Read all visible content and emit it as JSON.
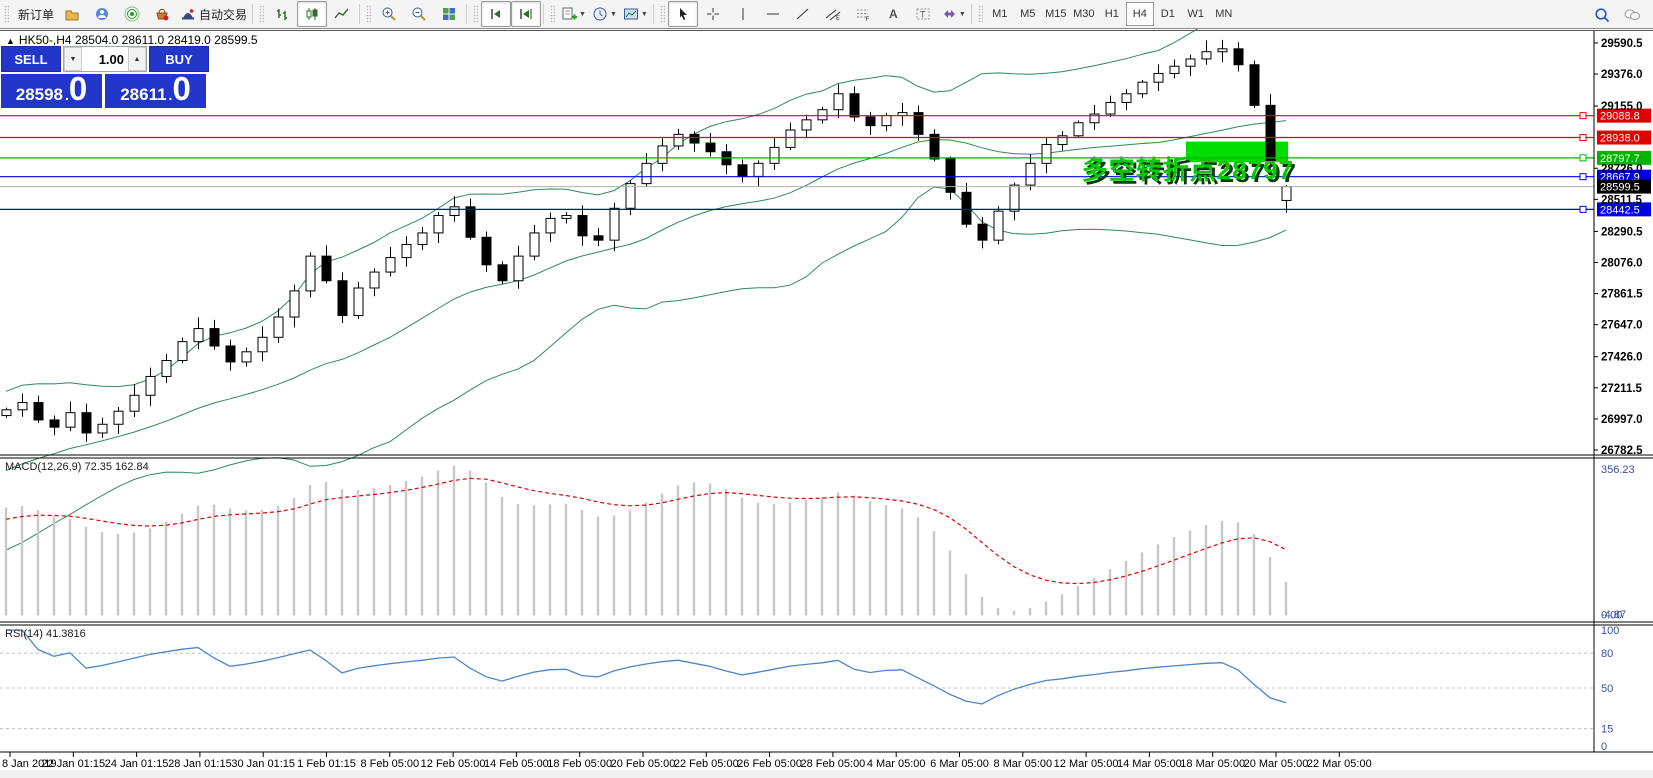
{
  "window": {
    "title_marker": "▲",
    "chart_title": "HK50-,H4  28504.0 28611.0 28419.0 28599.5"
  },
  "toolbar": {
    "groups": [
      {
        "items": [
          {
            "name": "new-order-button",
            "label": "新订单"
          },
          {
            "name": "charts-button",
            "icon": "charts-icon"
          },
          {
            "name": "community-button",
            "icon": "community-icon"
          },
          {
            "name": "signals-button",
            "icon": "signals-icon"
          },
          {
            "name": "market-button",
            "icon": "market-icon"
          },
          {
            "name": "autotrading-button",
            "icon": "autotrading-icon",
            "label": "自动交易"
          }
        ]
      },
      {
        "items": [
          {
            "name": "bar-chart-style-button",
            "icon": "bar-chart-icon"
          },
          {
            "name": "candlestick-style-button",
            "icon": "candlestick-icon",
            "pressed": true
          },
          {
            "name": "line-chart-style-button",
            "icon": "line-chart-icon"
          }
        ]
      },
      {
        "items": [
          {
            "name": "zoom-in-button",
            "icon": "zoom-in-icon"
          },
          {
            "name": "zoom-out-button",
            "icon": "zoom-out-icon"
          },
          {
            "name": "tile-windows-button",
            "icon": "tile-windows-icon"
          }
        ]
      },
      {
        "items": [
          {
            "name": "auto-scroll-button",
            "icon": "auto-scroll-icon",
            "pressed": true
          },
          {
            "name": "chart-shift-button",
            "icon": "chart-shift-icon",
            "pressed": true
          }
        ]
      },
      {
        "items": [
          {
            "name": "new-chart-button",
            "icon": "new-chart-icon",
            "dropdown": true
          },
          {
            "name": "periods-button",
            "icon": "periods-icon",
            "dropdown": true
          },
          {
            "name": "templates-button",
            "icon": "templates-icon",
            "dropdown": true
          }
        ]
      },
      {
        "items": [
          {
            "name": "cursor-button",
            "icon": "cursor-icon",
            "pressed": true
          },
          {
            "name": "crosshair-button",
            "icon": "crosshair-icon"
          },
          {
            "name": "vertical-line-button",
            "icon": "vertical-line-icon"
          },
          {
            "name": "horizontal-line-button",
            "icon": "horizontal-line-icon"
          },
          {
            "name": "trendline-button",
            "icon": "trendline-icon"
          },
          {
            "name": "equidistant-channel-button",
            "icon": "equidistant-channel-icon"
          },
          {
            "name": "fibonacci-button",
            "icon": "fibonacci-icon"
          },
          {
            "name": "text-button",
            "icon": "text-icon"
          },
          {
            "name": "text-label-button",
            "icon": "text-label-icon"
          },
          {
            "name": "arrows-button",
            "icon": "arrows-icon",
            "dropdown": true
          }
        ]
      }
    ],
    "timeframes": [
      {
        "label": "M1"
      },
      {
        "label": "M5"
      },
      {
        "label": "M15"
      },
      {
        "label": "M30"
      },
      {
        "label": "H1"
      },
      {
        "label": "H4",
        "pressed": true
      },
      {
        "label": "D1"
      },
      {
        "label": "W1"
      },
      {
        "label": "MN"
      }
    ],
    "right_items": [
      {
        "name": "search-button",
        "icon": "search-icon"
      },
      {
        "name": "chat-button",
        "icon": "chat-icon"
      }
    ]
  },
  "trade_panel": {
    "sell_label": "SELL",
    "buy_label": "BUY",
    "volume": "1.00",
    "sell_price": {
      "main": "28598",
      "dot": ".",
      "big": "0"
    },
    "buy_price": {
      "main": "28611",
      "dot": ".",
      "big": "0"
    }
  },
  "price_axis": {
    "ticks": [
      "29590.5",
      "29376.0",
      "29155.0",
      "28726.0",
      "28511.5",
      "28290.5",
      "28076.0",
      "27861.5",
      "27647.0",
      "27426.0",
      "27211.5",
      "26997.0",
      "26782.5"
    ]
  },
  "price_lines": [
    {
      "value": 29088.8,
      "label": "29088.8",
      "color": "#e00000",
      "text": "#ffffff"
    },
    {
      "value": 28938.0,
      "label": "28938.0",
      "color": "#e00000",
      "text": "#ffffff"
    },
    {
      "value": 28797.7,
      "label": "28797.7",
      "color": "#00b400",
      "text": "#ffffff"
    },
    {
      "value": 28667.9,
      "label": "28667.9",
      "color": "#0000e8",
      "text": "#ffffff"
    },
    {
      "value": 28442.5,
      "label": "28442.5",
      "color": "#0000e8",
      "text": "#ffffff"
    }
  ],
  "current_price": {
    "value": 28599.5,
    "label": "28599.5",
    "line_color": "#b0b0b0",
    "bg": "#000000",
    "text": "#ffffff"
  },
  "indicators": {
    "macd": {
      "label": "MACD(12,26,9) 72.35 162.84",
      "scale_top": "356.23",
      "scale_zero": "0.00",
      "scale_min": "-4.87"
    },
    "rsi": {
      "label": "RSI(14) 41.3816",
      "scale_labels": [
        "100",
        "80",
        "50",
        "15",
        "0"
      ],
      "levels": [
        80,
        50,
        15
      ]
    }
  },
  "time_axis": {
    "labels": [
      "8 Jan 2019",
      "22 Jan 01:15",
      "24 Jan 01:15",
      "28 Jan 01:15",
      "30 Jan 01:15",
      "1 Feb 01:15",
      "8 Feb 05:00",
      "12 Feb 05:00",
      "14 Feb 05:00",
      "18 Feb 05:00",
      "20 Feb 05:00",
      "22 Feb 05:00",
      "26 Feb 05:00",
      "28 Feb 05:00",
      "4 Mar 05:00",
      "6 Mar 05:00",
      "8 Mar 05:00",
      "12 Mar 05:00",
      "14 Mar 05:00",
      "18 Mar 05:00",
      "20 Mar 05:00",
      "22 Mar 05:00"
    ]
  },
  "annotation": {
    "text": "多空转折点28797",
    "color": "#00cc00"
  },
  "highlight_rect": {
    "price_top": 28910,
    "price_bottom": 28768,
    "bar_start": 74,
    "bar_end": 80,
    "color": "#00dc00"
  },
  "chart_data": {
    "type": "candlestick",
    "symbol": "HK50",
    "timeframe": "H4",
    "title": "HK50-,H4",
    "ohlc_current": [
      28504.0,
      28611.0,
      28419.0,
      28599.5
    ],
    "y_range": [
      26748,
      29666
    ],
    "closes": [
      27060,
      27110,
      26990,
      26940,
      27040,
      26900,
      26960,
      27050,
      27160,
      27290,
      27400,
      27530,
      27620,
      27500,
      27390,
      27460,
      27560,
      27700,
      27880,
      28120,
      27950,
      27710,
      27900,
      28010,
      28110,
      28200,
      28280,
      28400,
      28460,
      28250,
      28060,
      27950,
      28120,
      28280,
      28380,
      28400,
      28260,
      28230,
      28450,
      28620,
      28760,
      28880,
      28960,
      28900,
      28840,
      28750,
      28670,
      28760,
      28870,
      28990,
      29060,
      29130,
      29240,
      29080,
      29020,
      29090,
      29110,
      28960,
      28790,
      28560,
      28340,
      28230,
      28430,
      28610,
      28760,
      28890,
      28950,
      29040,
      29100,
      29180,
      29240,
      29320,
      29380,
      29430,
      29480,
      29530,
      29550,
      29440,
      29160,
      28780,
      28599.5
    ],
    "overlays": [
      {
        "name": "Bollinger Bands",
        "period": 20,
        "deviation": 2,
        "color": "#2e8b57"
      }
    ],
    "sub_indicators": [
      {
        "name": "MACD",
        "params": [
          12,
          26,
          9
        ],
        "current_values": [
          72.35,
          162.84
        ],
        "scale": [
          -4.87,
          356.23
        ],
        "histogram_color": "#c8c8c8",
        "signal_color": "#e00000"
      },
      {
        "name": "RSI",
        "params": [
          14
        ],
        "current_value": 41.3816,
        "scale": [
          0,
          100
        ],
        "levels": [
          80,
          50,
          15
        ],
        "line_color": "#4a86c8"
      }
    ]
  },
  "colors": {
    "candle_up_fill": "#ffffff",
    "candle_down_fill": "#000000",
    "candle_border": "#000000",
    "axis_text": "#000000",
    "sub_axis_text": "#3850a0",
    "level_dash": "#c0c0c0",
    "trade_blue": "#2236ca",
    "chart_bg": "#ffffff"
  }
}
